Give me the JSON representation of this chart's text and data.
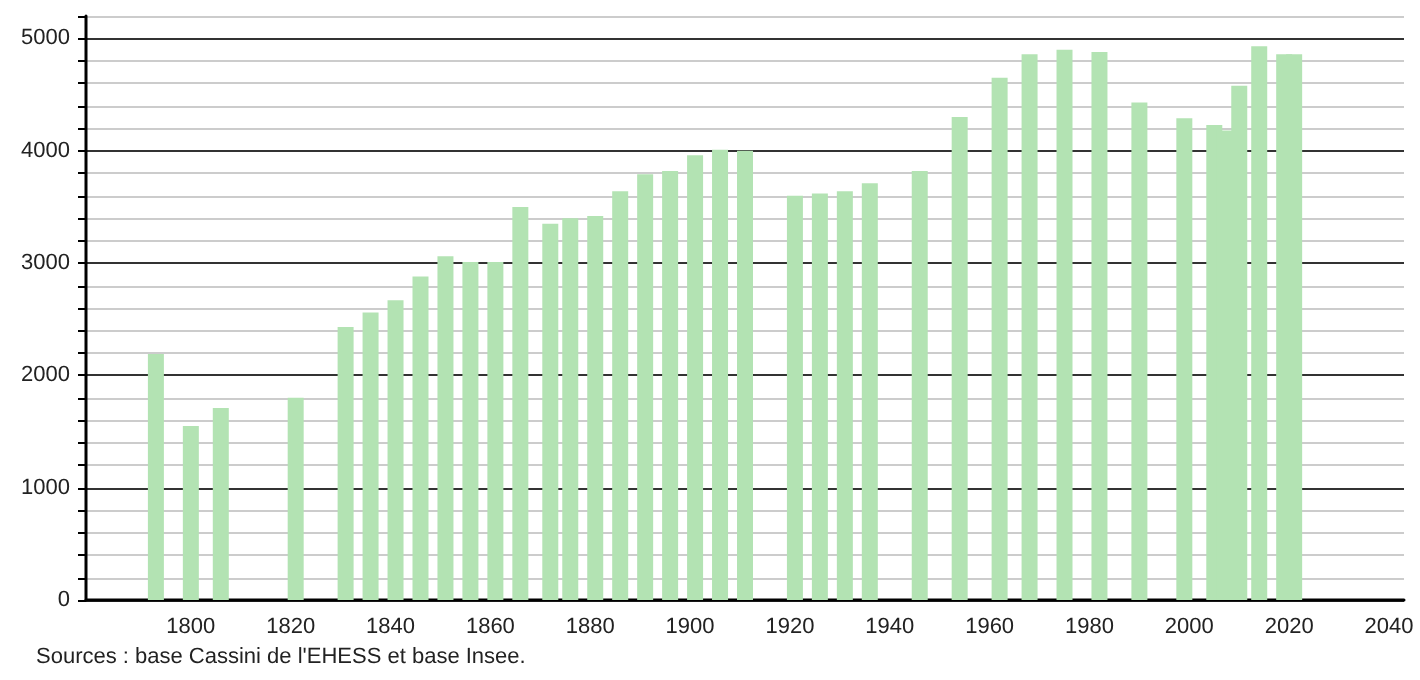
{
  "chart_data": {
    "type": "bar",
    "color": "#b3e3b3",
    "x": [
      1793,
      1800,
      1806,
      1821,
      1831,
      1836,
      1841,
      1846,
      1851,
      1856,
      1861,
      1866,
      1872,
      1876,
      1881,
      1886,
      1891,
      1896,
      1901,
      1906,
      1911,
      1921,
      1926,
      1931,
      1936,
      1946,
      1954,
      1962,
      1968,
      1975,
      1982,
      1990,
      1999,
      2005,
      2007,
      2010,
      2014,
      2019,
      2021
    ],
    "values": [
      2190,
      1550,
      1710,
      1800,
      2430,
      2560,
      2670,
      2880,
      3060,
      3010,
      3010,
      3500,
      3350,
      3400,
      3420,
      3640,
      3790,
      3820,
      3960,
      4010,
      4000,
      3600,
      3620,
      3640,
      3710,
      3820,
      4300,
      4650,
      4860,
      4900,
      4880,
      4430,
      4290,
      4230,
      4180,
      4580,
      4930,
      4860,
      4860
    ],
    "xlim": [
      1779,
      2043
    ],
    "xticks": [
      1800,
      1820,
      1840,
      1860,
      1880,
      1900,
      1920,
      1940,
      1960,
      1980,
      2000,
      2020,
      2040
    ],
    "ylim": [
      0,
      5200
    ],
    "yticks": [
      0,
      {
        "value": 200,
        "label": null
      },
      {
        "value": 400,
        "label": null
      },
      {
        "value": 600,
        "label": null
      },
      {
        "value": 800,
        "label": null
      },
      1000,
      {
        "value": 1200,
        "label": null
      },
      {
        "value": 1400,
        "label": null
      },
      {
        "value": 1600,
        "label": null
      },
      {
        "value": 1800,
        "label": null
      },
      2000,
      {
        "value": 2200,
        "label": null
      },
      {
        "value": 2400,
        "label": null
      },
      {
        "value": 2600,
        "label": null
      },
      {
        "value": 2800,
        "label": null
      },
      3000,
      {
        "value": 3200,
        "label": null
      },
      {
        "value": 3400,
        "label": null
      },
      {
        "value": 3600,
        "label": null
      },
      {
        "value": 3800,
        "label": null
      },
      4000,
      {
        "value": 4200,
        "label": null
      },
      {
        "value": 4400,
        "label": null
      },
      {
        "value": 4600,
        "label": null
      },
      {
        "value": 4800,
        "label": null
      },
      5000,
      {
        "value": 5200,
        "label": null
      }
    ],
    "grid": "y",
    "annotations": [
      "Sources : base Cassini de l'EHESS et base Insee."
    ]
  }
}
